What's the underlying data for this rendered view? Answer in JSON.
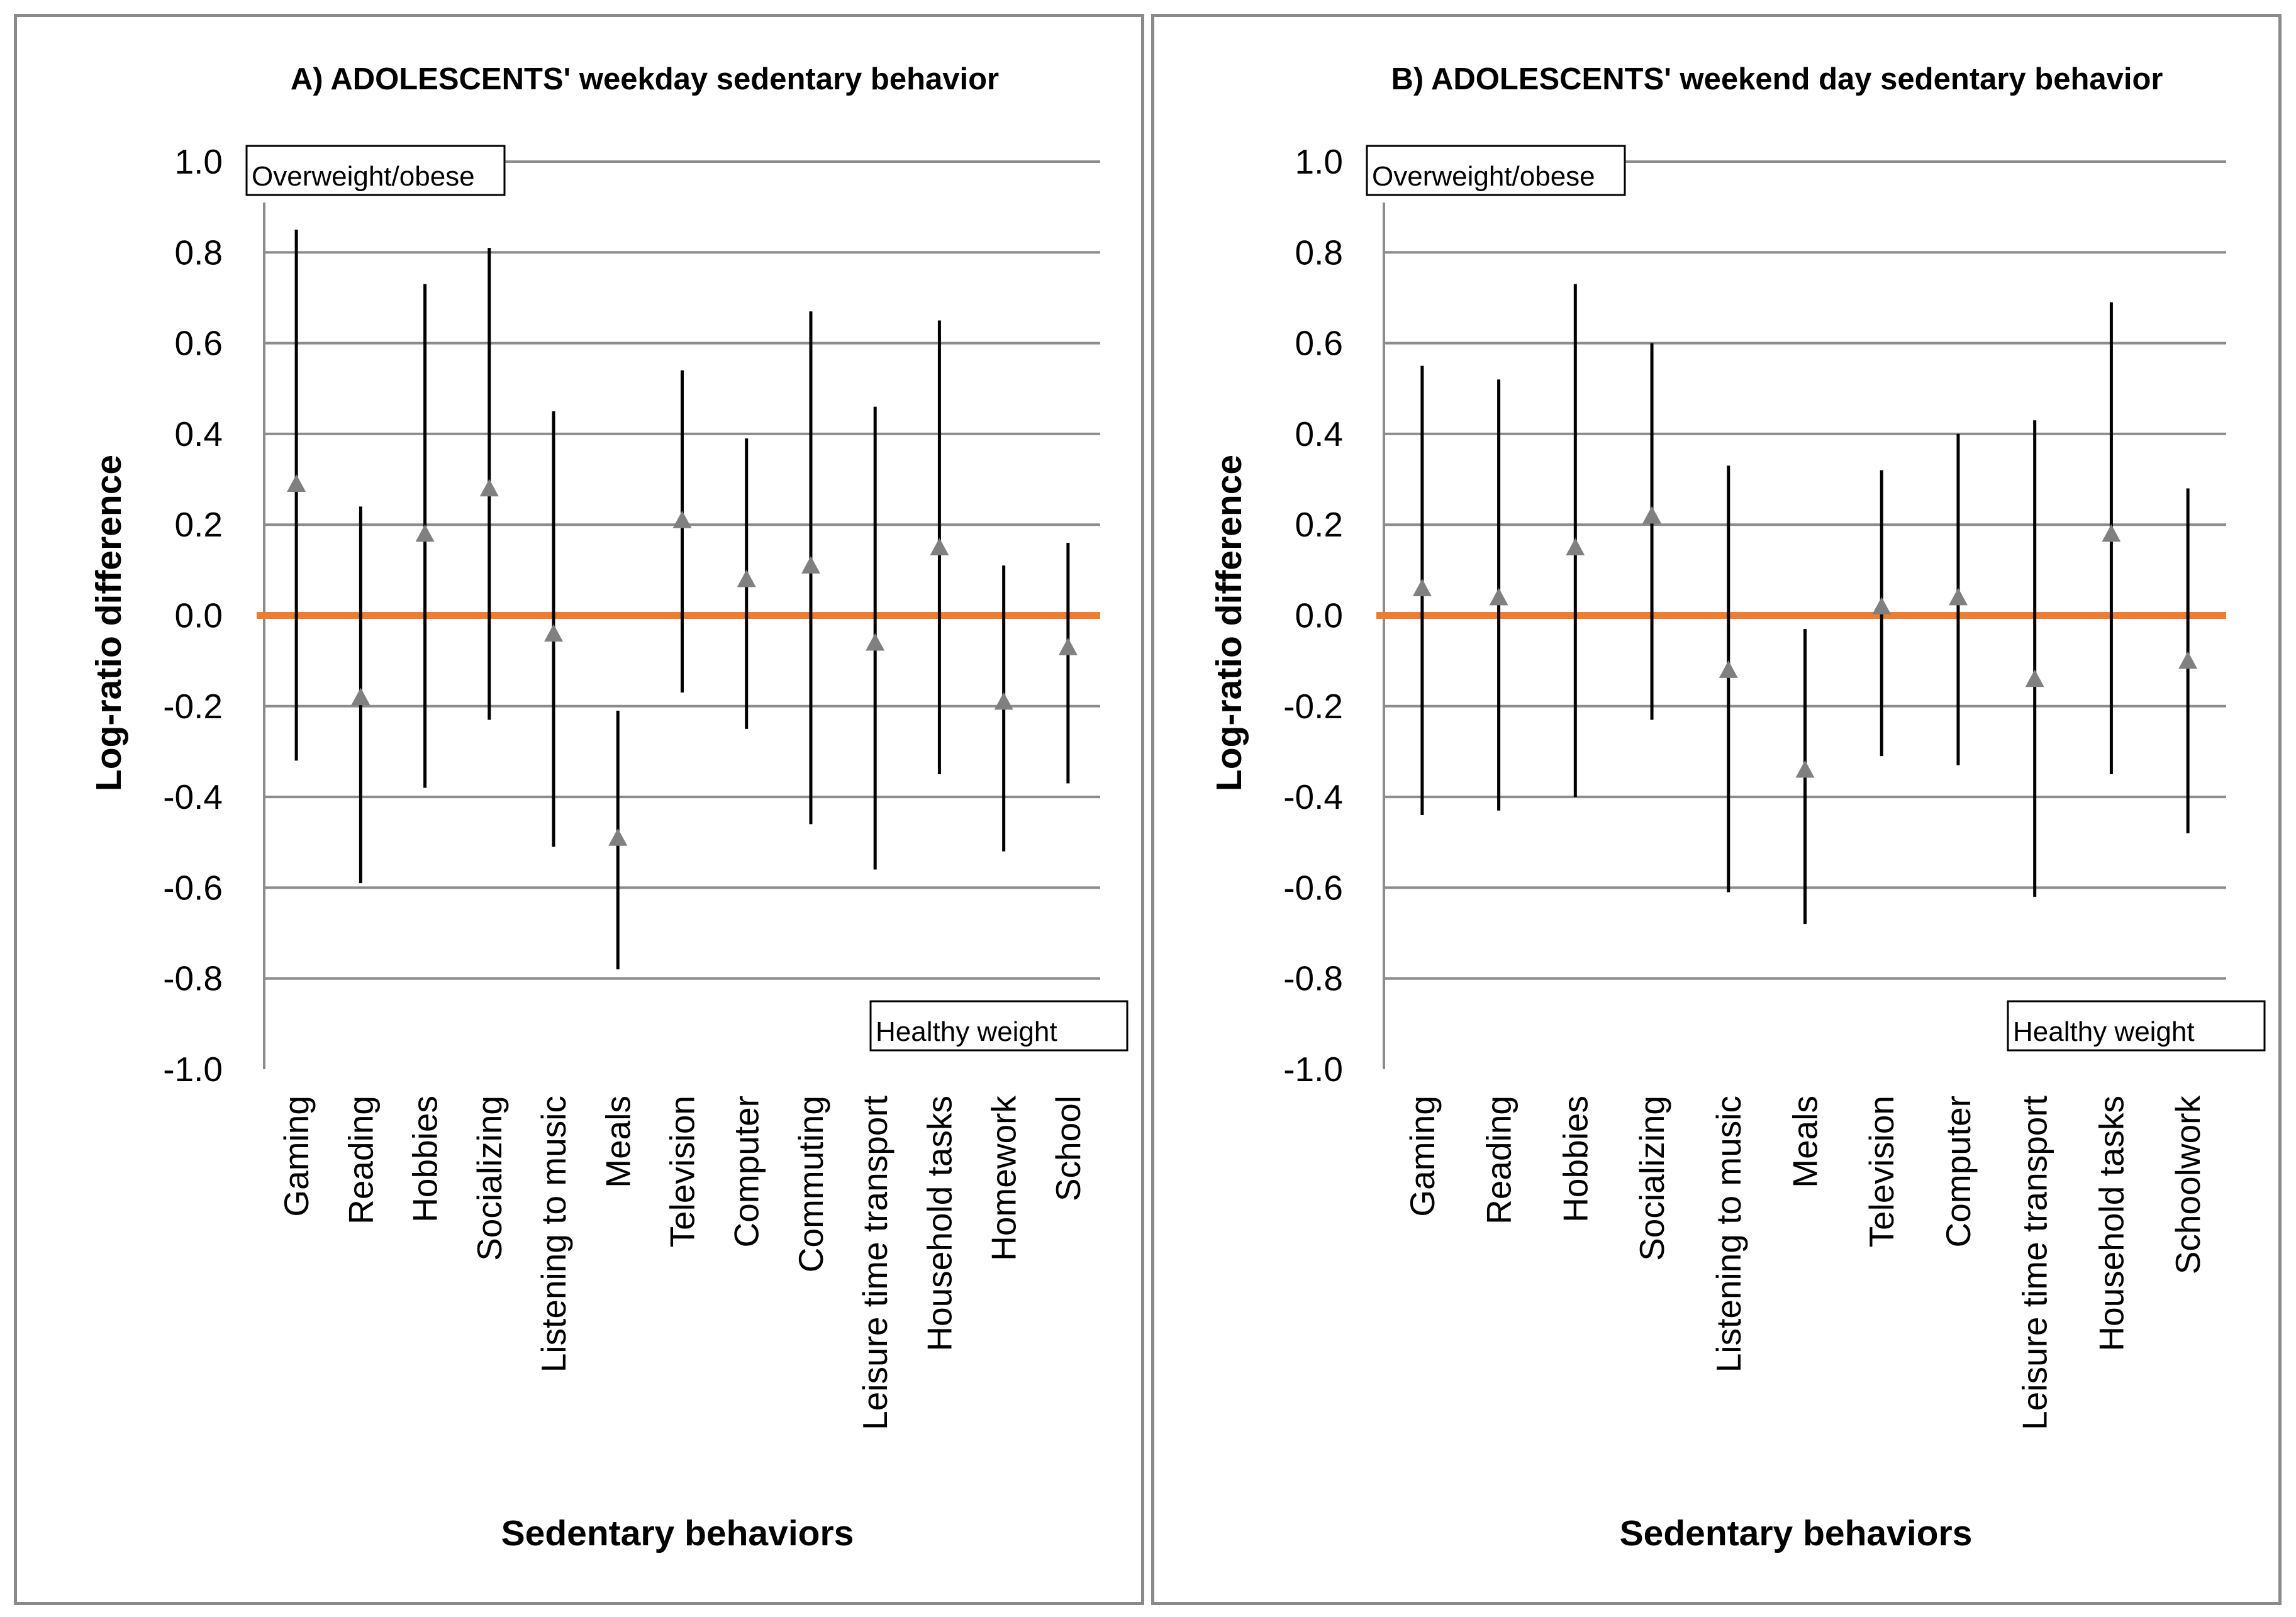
{
  "chart_data": [
    {
      "type": "scatter",
      "title": "A) ADOLESCENTS' weekday sedentary behavior",
      "xlabel": "Sedentary behaviors",
      "ylabel": "Log-ratio difference",
      "ylim": [
        -1.0,
        1.0
      ],
      "yticks": [
        "1.0",
        "0.8",
        "0.6",
        "0.4",
        "0.2",
        "0.0",
        "-0.2",
        "-0.4",
        "-0.6",
        "-0.8",
        "-1.0"
      ],
      "grid": true,
      "reference_line": 0.0,
      "annotations": {
        "top": "Overweight/obese",
        "bottom": "Healthy weight"
      },
      "categories": [
        "Gaming",
        "Reading",
        "Hobbies",
        "Socializing",
        "Listening to music",
        "Meals",
        "Television",
        "Computer",
        "Commuting",
        "Leisure time transport",
        "Household tasks",
        "Homework",
        "School"
      ],
      "values": [
        0.29,
        -0.18,
        0.18,
        0.28,
        -0.04,
        -0.49,
        0.21,
        0.08,
        0.11,
        -0.06,
        0.15,
        -0.19,
        -0.07
      ],
      "lower": [
        -0.32,
        -0.59,
        -0.38,
        -0.23,
        -0.51,
        -0.78,
        -0.17,
        -0.25,
        -0.46,
        -0.56,
        -0.35,
        -0.52,
        -0.37
      ],
      "upper": [
        0.85,
        0.24,
        0.73,
        0.81,
        0.45,
        -0.21,
        0.54,
        0.39,
        0.67,
        0.46,
        0.65,
        0.11,
        0.16
      ]
    },
    {
      "type": "scatter",
      "title": "B) ADOLESCENTS' weekend day sedentary behavior",
      "xlabel": "Sedentary behaviors",
      "ylabel": "Log-ratio difference",
      "ylim": [
        -1.0,
        1.0
      ],
      "yticks": [
        "1.0",
        "0.8",
        "0.6",
        "0.4",
        "0.2",
        "0.0",
        "-0.2",
        "-0.4",
        "-0.6",
        "-0.8",
        "-1.0"
      ],
      "grid": true,
      "reference_line": 0.0,
      "annotations": {
        "top": "Overweight/obese",
        "bottom": "Healthy weight"
      },
      "categories": [
        "Gaming",
        "Reading",
        "Hobbies",
        "Socializing",
        "Listening to music",
        "Meals",
        "Television",
        "Computer",
        "Leisure time transport",
        "Household tasks",
        "Schoolwork"
      ],
      "values": [
        0.06,
        0.04,
        0.15,
        0.22,
        -0.12,
        -0.34,
        0.02,
        0.04,
        -0.14,
        0.18,
        -0.1
      ],
      "lower": [
        -0.44,
        -0.43,
        -0.4,
        -0.23,
        -0.61,
        -0.68,
        -0.31,
        -0.33,
        -0.62,
        -0.35,
        -0.48
      ],
      "upper": [
        0.55,
        0.52,
        0.73,
        0.6,
        0.33,
        -0.03,
        0.32,
        0.4,
        0.43,
        0.69,
        0.28
      ]
    }
  ],
  "colors": {
    "grid": "#8c8c8c",
    "reference_line": "#ed7d31",
    "marker": "#808080",
    "errorbar": "#000000"
  }
}
